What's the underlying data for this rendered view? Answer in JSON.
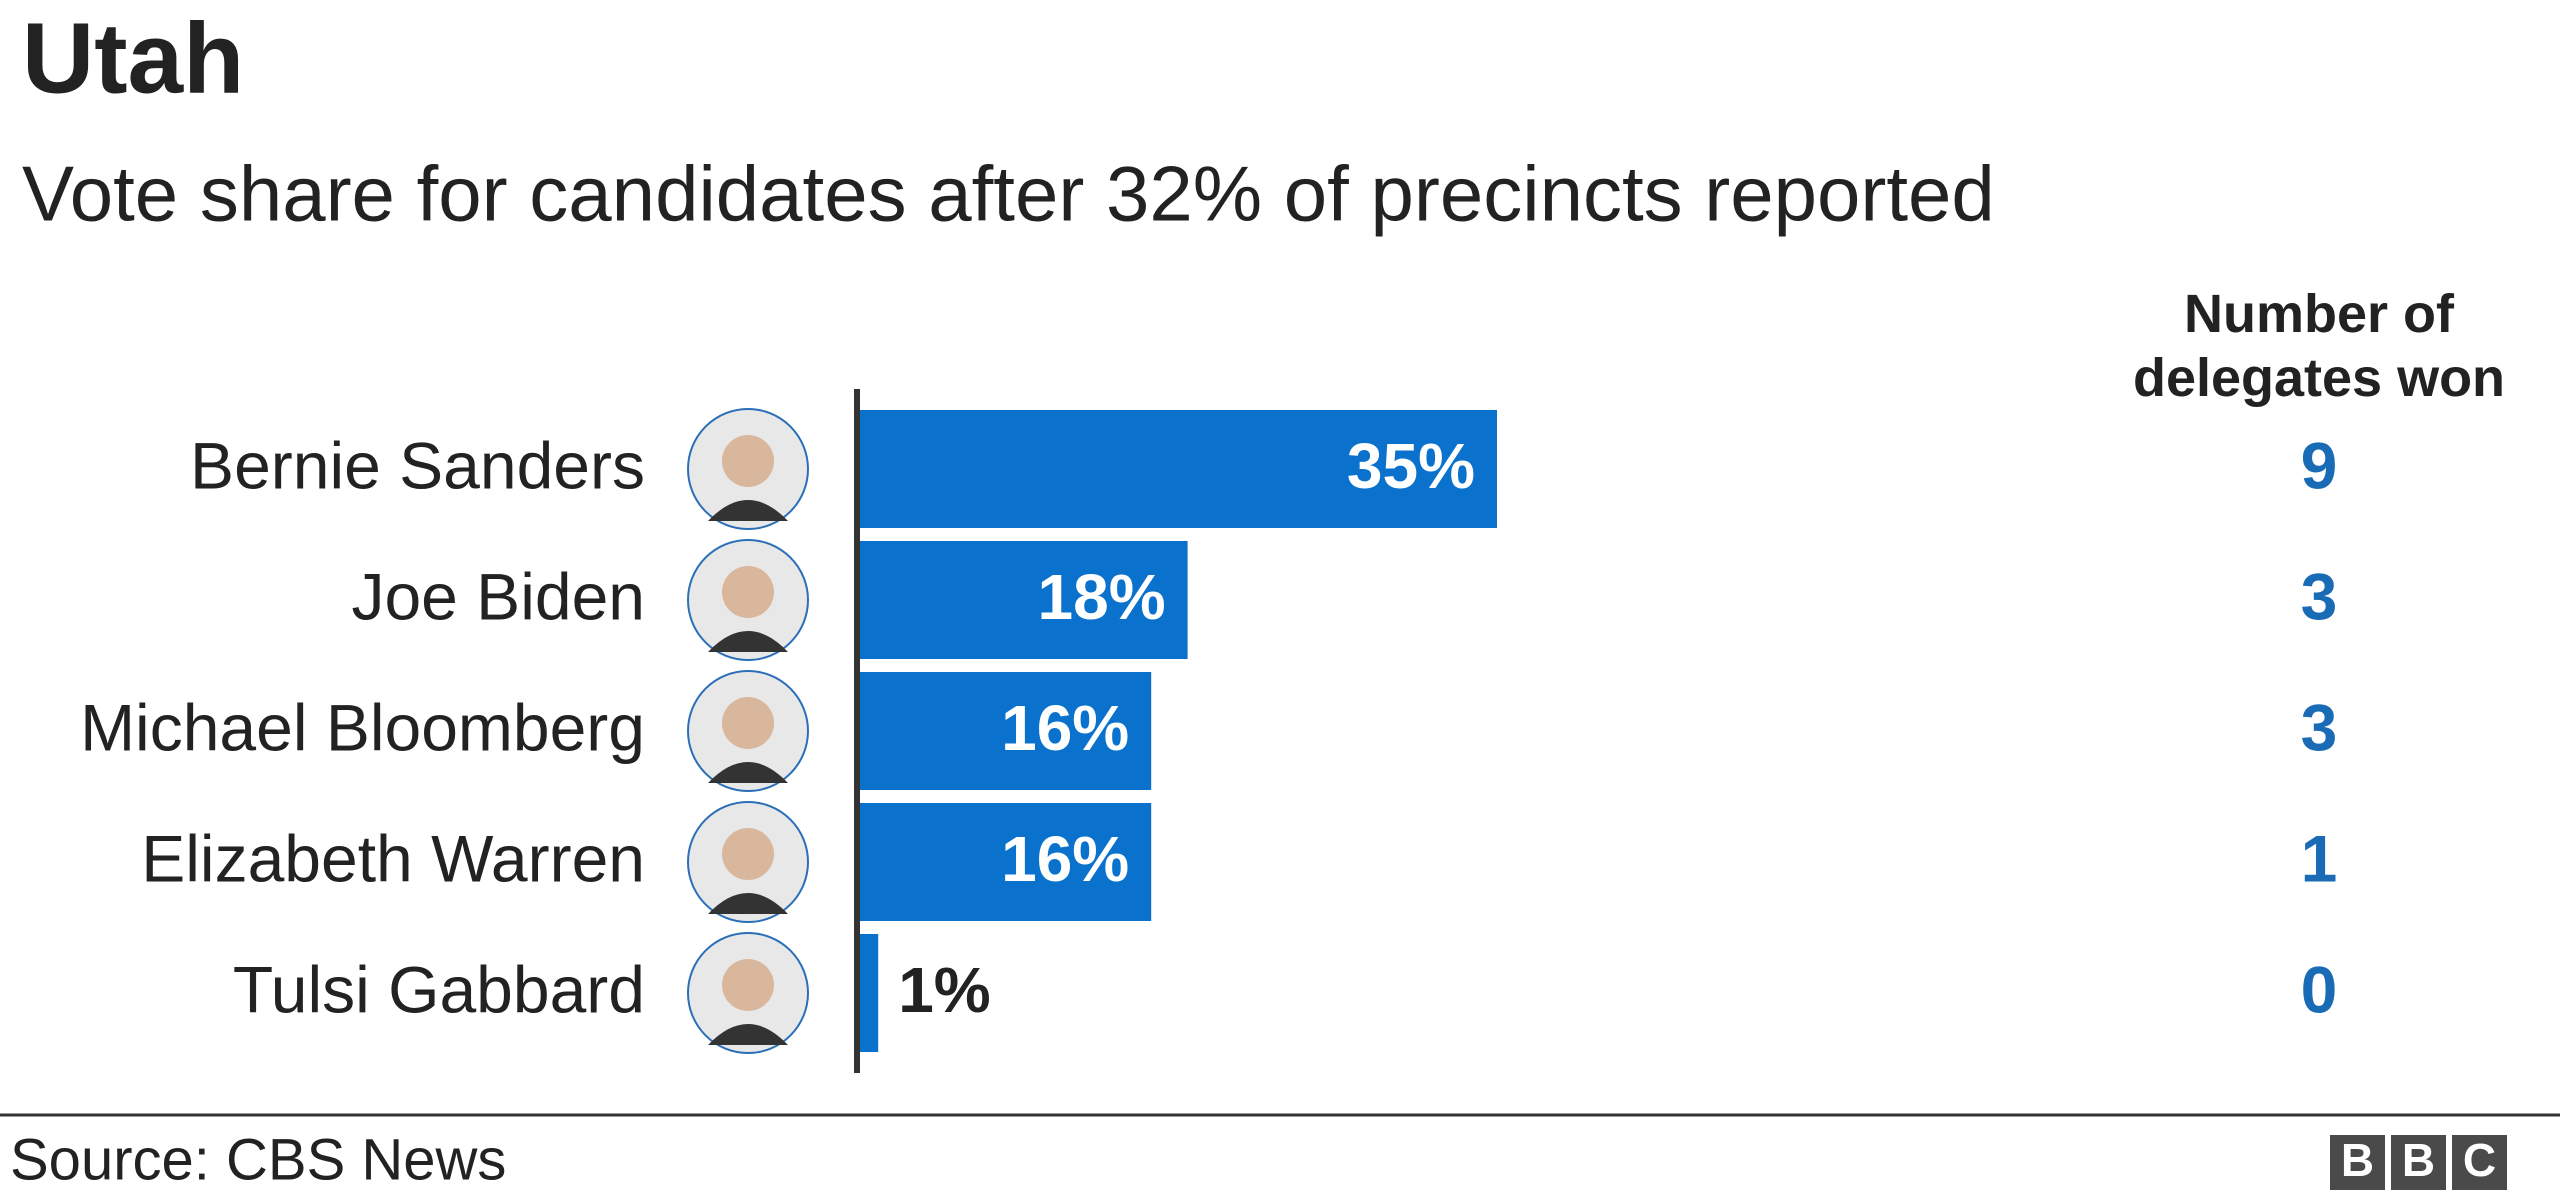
{
  "chart_data": {
    "type": "bar",
    "title": "Utah",
    "subtitle": "Vote share for candidates after 32% of precincts reported",
    "categories": [
      "Bernie Sanders",
      "Joe Biden",
      "Michael Bloomberg",
      "Elizabeth Warren",
      "Tulsi Gabbard"
    ],
    "values": [
      35,
      18,
      16,
      16,
      1
    ],
    "value_labels": [
      "35%",
      "18%",
      "16%",
      "16%",
      "1%"
    ],
    "color": "#0a72cc",
    "delegates_header": "Number of delegates won",
    "delegates": [
      9,
      3,
      3,
      1,
      0
    ],
    "source": "Source: CBS News",
    "logo": [
      "B",
      "B",
      "C"
    ]
  }
}
